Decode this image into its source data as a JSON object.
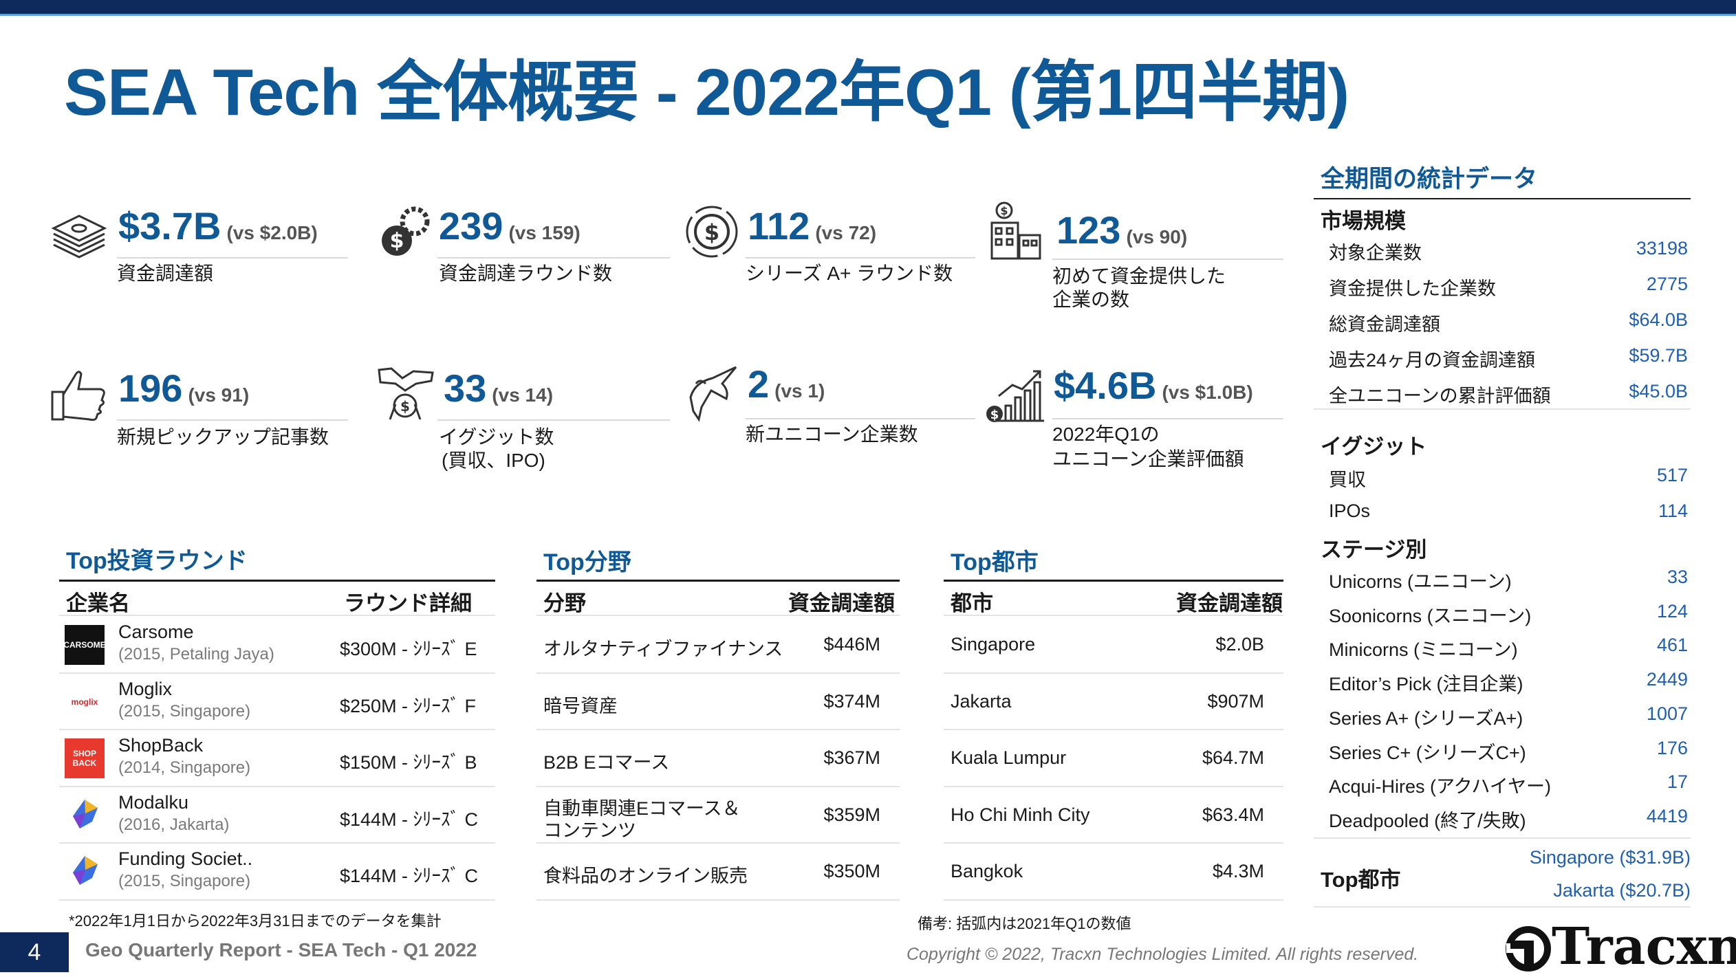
{
  "header": {
    "title": "SEA Tech 全体概要 - 2022年Q1 (第1四半期)"
  },
  "kpis": [
    {
      "icon": "money-stack-icon",
      "value": "$3.7B",
      "vs": "(vs $2.0B)",
      "label1": "資金調達額",
      "label2": ""
    },
    {
      "icon": "funding-gear-icon",
      "value": "239",
      "vs": "(vs 159)",
      "label1": "資金調達ラウンド数",
      "label2": ""
    },
    {
      "icon": "dollar-circle-icon",
      "value": "112",
      "vs": "(vs 72)",
      "label1": "シリーズ A+ ラウンド数",
      "label2": ""
    },
    {
      "icon": "building-dollar-icon",
      "value": "123",
      "vs": "(vs 90)",
      "label1": "初めて資金提供した",
      "label2": "企業の数"
    },
    {
      "icon": "thumbs-up-icon",
      "value": "196",
      "vs": "(vs 91)",
      "label1": "新規ピックアップ記事数",
      "label2": ""
    },
    {
      "icon": "handshake-icon",
      "value": "33",
      "vs": "(vs 14)",
      "label1": "イグジット数",
      "label2": "(買収、IPO)"
    },
    {
      "icon": "unicorn-icon",
      "value": "2",
      "vs": "(vs 1)",
      "label1": "新ユニコーン企業数",
      "label2": ""
    },
    {
      "icon": "growth-chart-icon",
      "value": "$4.6B",
      "vs": "(vs $1.0B)",
      "label1": "2022年Q1の",
      "label2": "ユニコーン企業評価額"
    }
  ],
  "top_rounds": {
    "title": "Top投資ラウンド",
    "col1": "企業名",
    "col2": "ラウンド詳細",
    "rows": [
      {
        "name": "Carsome",
        "meta": "(2015, Petaling Jaya)",
        "detail": "$300M - ｼﾘｰｽﾞ E",
        "logo": "CARSOME",
        "logo_bg": "#111111",
        "logo_fg": "#ffffff"
      },
      {
        "name": "Moglix",
        "meta": "(2015, Singapore)",
        "detail": "$250M - ｼﾘｰｽﾞ F",
        "logo": "moglix",
        "logo_bg": "#ffffff",
        "logo_fg": "#d0252b"
      },
      {
        "name": "ShopBack",
        "meta": "(2014, Singapore)",
        "detail": "$150M - ｼﾘｰｽﾞ B",
        "logo": "SHOP BACK",
        "logo_bg": "#e8392f",
        "logo_fg": "#ffffff"
      },
      {
        "name": "Modalku",
        "meta": "(2016, Jakarta)",
        "detail": "$144M - ｼﾘｰｽﾞ C",
        "logo": "",
        "logo_bg": "#ffffff",
        "logo_fg": "#3b6fe0"
      },
      {
        "name": "Funding Societ..",
        "meta": "(2015, Singapore)",
        "detail": "$144M - ｼﾘｰｽﾞ C",
        "logo": "",
        "logo_bg": "#ffffff",
        "logo_fg": "#3b6fe0"
      }
    ],
    "footnote": "*2022年1月1日から2022年3月31日までのデータを集計"
  },
  "top_sectors": {
    "title": "Top分野",
    "col1": "分野",
    "col2": "資金調達額",
    "rows": [
      {
        "name": "オルタナティブファイナンス",
        "name2": "",
        "amount": "$446M"
      },
      {
        "name": "暗号資産",
        "name2": "",
        "amount": "$374M"
      },
      {
        "name": "B2B Eコマース",
        "name2": "",
        "amount": "$367M"
      },
      {
        "name": "自動車関連Eコマース＆",
        "name2": "コンテンツ",
        "amount": "$359M"
      },
      {
        "name": "食料品のオンライン販売",
        "name2": "",
        "amount": "$350M"
      }
    ]
  },
  "top_cities": {
    "title": "Top都市",
    "col1": "都市",
    "col2": "資金調達額",
    "rows": [
      {
        "name": "Singapore",
        "amount": "$2.0B"
      },
      {
        "name": "Jakarta",
        "amount": "$907M"
      },
      {
        "name": "Kuala Lumpur",
        "amount": "$64.7M"
      },
      {
        "name": "Ho Chi Minh City",
        "amount": "$63.4M"
      },
      {
        "name": "Bangkok",
        "amount": "$4.3M"
      }
    ],
    "note": "備考: 括弧内は2021年Q1の数値"
  },
  "stats": {
    "title": "全期間の統計データ",
    "market_title": "市場規模",
    "market": [
      {
        "label": "対象企業数",
        "value": "33198"
      },
      {
        "label": "資金提供した企業数",
        "value": "2775"
      },
      {
        "label": "総資金調達額",
        "value": "$64.0B"
      },
      {
        "label": "過去24ヶ月の資金調達額",
        "value": "$59.7B"
      },
      {
        "label": "全ユニコーンの累計評価額",
        "value": "$45.0B"
      }
    ],
    "exit_title": "イグジット",
    "exits": [
      {
        "label": "買収",
        "value": "517"
      },
      {
        "label": "IPOs",
        "value": "114"
      }
    ],
    "stage_title": "ステージ別",
    "stages": [
      {
        "label": "Unicorns (ユニコーン)",
        "value": "33"
      },
      {
        "label": "Soonicorns (スニコーン)",
        "value": "124"
      },
      {
        "label": "Minicorns (ミニコーン)",
        "value": "461"
      },
      {
        "label": "Editor’s Pick (注目企業)",
        "value": "2449"
      },
      {
        "label": "Series A+ (シリーズA+)",
        "value": "1007"
      },
      {
        "label": "Series C+ (シリーズC+)",
        "value": "176"
      },
      {
        "label": "Acqui-Hires (アクハイヤー)",
        "value": "17"
      },
      {
        "label": "Deadpooled (終了/失敗)",
        "value": "4419"
      }
    ],
    "top_city_label": "Top都市",
    "top_city_1": "Singapore ($31.9B)",
    "top_city_2": "Jakarta ($20.7B)"
  },
  "footer": {
    "page": "4",
    "report": "Geo Quarterly Report - SEA Tech - Q1 2022",
    "copyright": "Copyright © 2022, Tracxn Technologies Limited. All rights reserved.",
    "brand": "Tracxn"
  },
  "colors": {
    "accent": "#0f5a96",
    "navy": "#0e2a5c",
    "stat_value": "#1f5fb0"
  }
}
